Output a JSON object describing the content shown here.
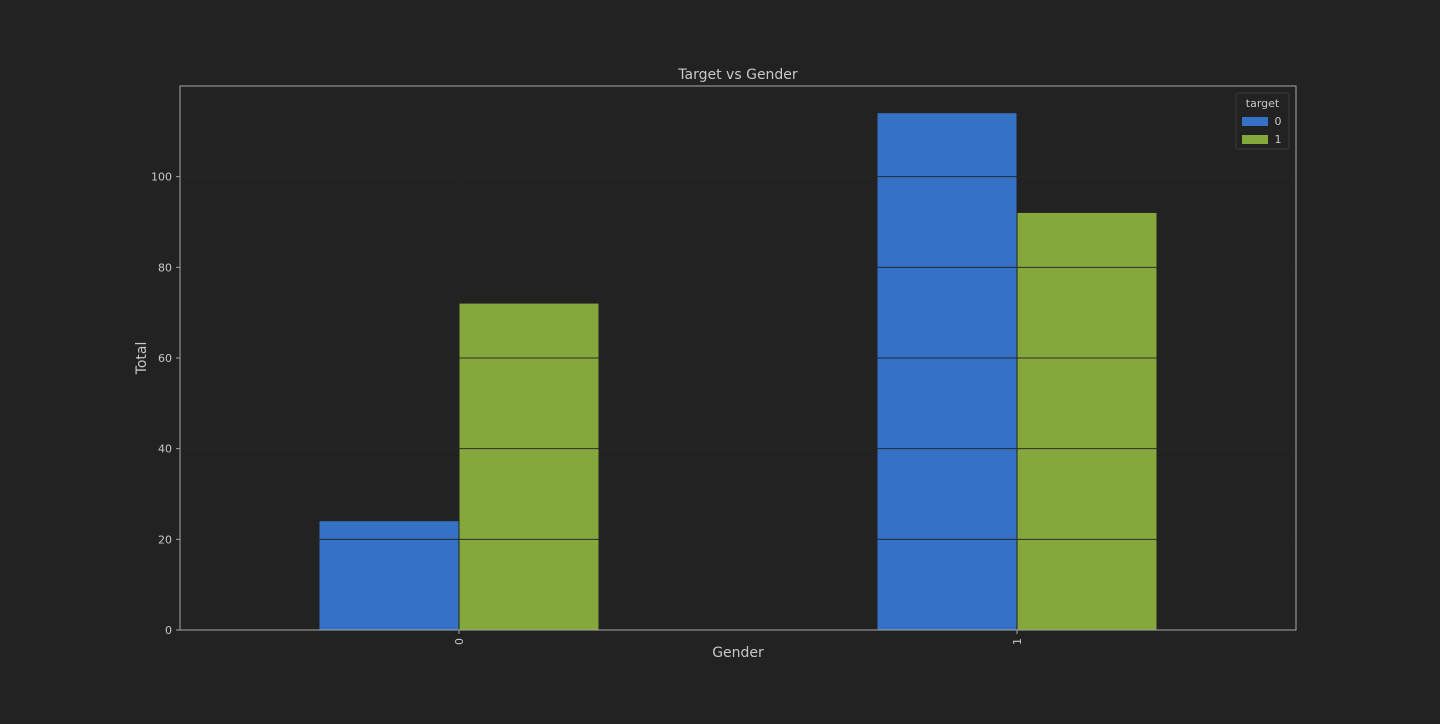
{
  "chart_data": {
    "type": "bar",
    "title": "Target vs Gender",
    "xlabel": "Gender",
    "ylabel": "Total",
    "categories": [
      "0",
      "1"
    ],
    "series": [
      {
        "name": "0",
        "values": [
          24,
          114
        ],
        "color": "#3572c6"
      },
      {
        "name": "1",
        "values": [
          72,
          92
        ],
        "color": "#84a83c"
      }
    ],
    "ylim": [
      0,
      120
    ],
    "yticks": [
      0,
      20,
      40,
      60,
      80,
      100
    ],
    "grid": true,
    "legend": {
      "title": "target",
      "placement": "top-right"
    }
  },
  "colors": {
    "background": "#222222",
    "plot_background": "#222222",
    "frame": "#a8a8a8",
    "grid": "#333333",
    "text": "#c8c8c8",
    "title_text": "#c8c8c8"
  }
}
